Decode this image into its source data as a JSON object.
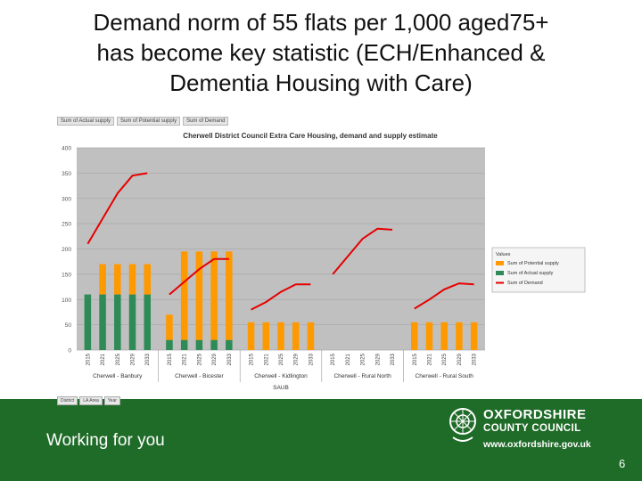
{
  "slide": {
    "title_lines": [
      "Demand norm of 55 flats per 1,000 aged75+",
      "has become key statistic (ECH/Enhanced &",
      "Dementia Housing with Care)"
    ]
  },
  "pivot_field_buttons": [
    "Sum of Actual supply",
    "Sum of Potential supply",
    "Sum of Demand"
  ],
  "filter_buttons": [
    "District",
    "LA Area",
    "Year"
  ],
  "colors": {
    "plot_bg": "#c0c0c0",
    "potential": "#ff9900",
    "actual": "#2e8b57",
    "demand": "#e60000",
    "footer": "#1f6b28"
  },
  "chart_data": {
    "type": "bar",
    "title": "Cherwell District Council Extra Care Housing, demand and supply estimate",
    "xlabel": "SAUB",
    "ylabel": "",
    "ylim": [
      0,
      400
    ],
    "yticks": [
      0,
      50,
      100,
      150,
      200,
      250,
      300,
      350,
      400
    ],
    "years": [
      "2015",
      "2021",
      "2025",
      "2029",
      "2033"
    ],
    "groups": [
      "Cherwell - Banbury",
      "Cherwell - Bicester",
      "Cherwell - Kidlington",
      "Cherwell - Rural North",
      "Cherwell - Rural South"
    ],
    "series": [
      {
        "name": "Sum of Potential supply",
        "kind": "stacked-bar",
        "values": [
          [
            0,
            60,
            60,
            60,
            60
          ],
          [
            50,
            175,
            175,
            175,
            175
          ],
          [
            55,
            55,
            55,
            55,
            55
          ],
          [
            0,
            0,
            0,
            0,
            0
          ],
          [
            55,
            55,
            55,
            55,
            55
          ]
        ]
      },
      {
        "name": "Sum of Actual supply",
        "kind": "stacked-bar",
        "values": [
          [
            110,
            110,
            110,
            110,
            110
          ],
          [
            20,
            20,
            20,
            20,
            20
          ],
          [
            0,
            0,
            0,
            0,
            0
          ],
          [
            0,
            0,
            0,
            0,
            0
          ],
          [
            0,
            0,
            0,
            0,
            0
          ]
        ]
      },
      {
        "name": "Sum of Demand",
        "kind": "line",
        "values": [
          [
            210,
            260,
            310,
            345,
            350
          ],
          [
            110,
            135,
            160,
            180,
            180
          ],
          [
            80,
            95,
            115,
            130,
            130
          ],
          [
            150,
            185,
            220,
            240,
            238
          ],
          [
            82,
            100,
            120,
            132,
            130
          ]
        ]
      }
    ],
    "legend": {
      "title": "Values",
      "entries": [
        "Sum of Potential supply",
        "Sum of Actual supply",
        "Sum of Demand"
      ],
      "placement": "right"
    },
    "grid": true
  },
  "footer": {
    "tagline": "Working for you",
    "org_line1": "OXFORDSHIRE",
    "org_line2": "COUNTY COUNCIL",
    "url": "www.oxfordshire.gov.uk",
    "page_number": "6"
  }
}
